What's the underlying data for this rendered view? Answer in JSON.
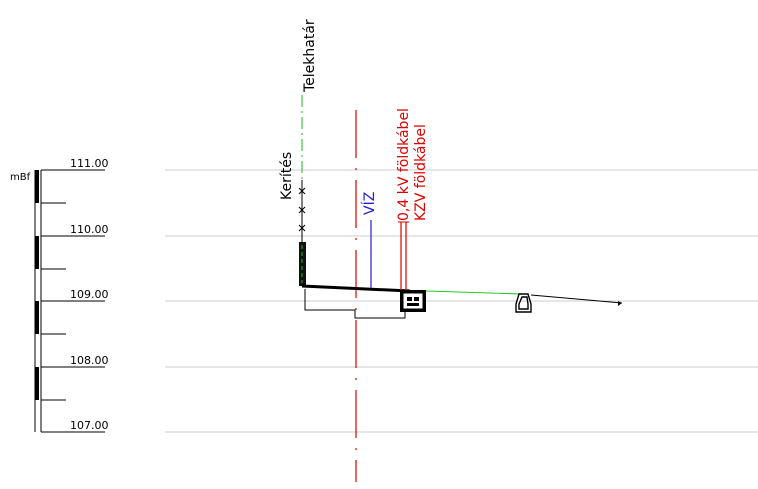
{
  "scale": {
    "unit": "mBf",
    "levels": [
      "111.00",
      "110.00",
      "109.00",
      "108.00",
      "107.00"
    ]
  },
  "labels": {
    "property_line": "Telekhatár",
    "fence": "Kerítés",
    "water": "VÍZ",
    "cable_04kv": "0,4 kV földkábel",
    "cable_kzv": "KZV földkábel"
  },
  "colors": {
    "property_line": "#22bb22",
    "axis": "#dd0000",
    "cable": "#dd0000",
    "water": "#2222cc",
    "grid": "#cccccc",
    "terrain": "#22cc22",
    "ink": "#000000"
  }
}
